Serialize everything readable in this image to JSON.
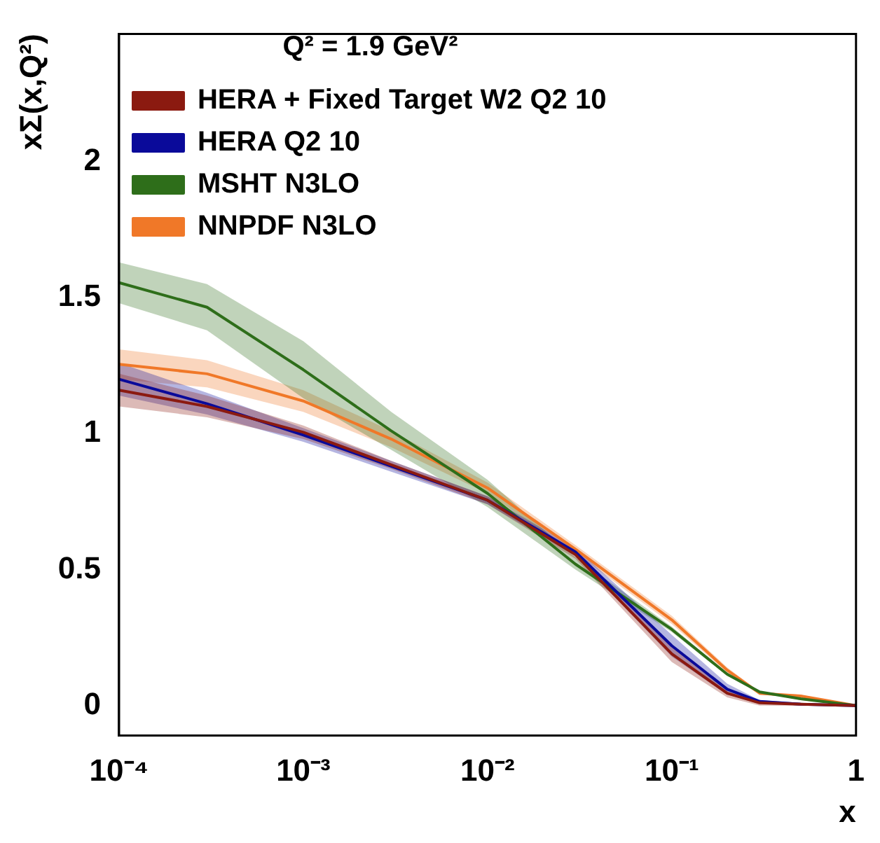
{
  "chart_data": {
    "type": "line",
    "ylabel": "xΣ(x,Q²)",
    "xlabel": "x",
    "legend_title": "Q² = 1.9 GeV²",
    "legend": "top left",
    "log": "x",
    "grid": false,
    "marker": "none",
    "line_style": "solid",
    "x": [
      0.0001,
      0.0003,
      0.001,
      0.003,
      0.01,
      0.03,
      0.1,
      0.2,
      0.3,
      0.5,
      1
    ],
    "xlim": [
      0.0001,
      1
    ],
    "xticks": [
      {
        "value": 0.0001,
        "label": "10⁻⁴"
      },
      {
        "value": 0.001,
        "label": "10⁻³"
      },
      {
        "value": 0.01,
        "label": "10⁻²"
      },
      {
        "value": 0.1,
        "label": "10⁻¹"
      },
      1
    ],
    "ylim": [
      -0.11,
      2.47
    ],
    "yticks": [
      0,
      0.5,
      1,
      1.5,
      2
    ],
    "series": [
      {
        "name": "HERA + Fixed Target W2 Q2 10",
        "color": "#8b1a10",
        "values": [
          1.16,
          1.1,
          1.005,
          0.885,
          0.755,
          0.555,
          0.19,
          0.045,
          0.01,
          0.005,
          0
        ],
        "lower": [
          1.1,
          1.06,
          0.98,
          0.87,
          0.74,
          0.54,
          0.16,
          0.03,
          0,
          0,
          0
        ],
        "upper": [
          1.22,
          1.14,
          1.03,
          0.9,
          0.77,
          0.57,
          0.22,
          0.06,
          0.02,
          0.01,
          0
        ]
      },
      {
        "name": "HERA Q2 10",
        "color": "#0a0a9a",
        "values": [
          1.2,
          1.11,
          0.995,
          0.88,
          0.755,
          0.565,
          0.22,
          0.06,
          0.015,
          0.005,
          0
        ],
        "lower": [
          1.14,
          1.07,
          0.97,
          0.86,
          0.74,
          0.55,
          0.18,
          0.04,
          0.01,
          0,
          0
        ],
        "upper": [
          1.26,
          1.15,
          1.02,
          0.9,
          0.77,
          0.58,
          0.26,
          0.08,
          0.02,
          0.01,
          0
        ]
      },
      {
        "name": "MSHT N3LO",
        "color": "#2e6e1a",
        "values": [
          1.555,
          1.465,
          1.235,
          1.01,
          0.78,
          0.52,
          0.28,
          0.115,
          0.05,
          0.025,
          0
        ],
        "lower": [
          1.48,
          1.38,
          1.13,
          0.94,
          0.73,
          0.5,
          0.27,
          0.11,
          0.05,
          0.02,
          0
        ],
        "upper": [
          1.63,
          1.55,
          1.34,
          1.08,
          0.83,
          0.545,
          0.29,
          0.12,
          0.05,
          0.03,
          0
        ]
      },
      {
        "name": "NNPDF N3LO",
        "color": "#f07828",
        "values": [
          1.255,
          1.22,
          1.12,
          0.98,
          0.8,
          0.575,
          0.315,
          0.13,
          0.045,
          0.035,
          0
        ],
        "lower": [
          1.2,
          1.17,
          1.08,
          0.95,
          0.78,
          0.56,
          0.3,
          0.12,
          0.04,
          0.03,
          0
        ],
        "upper": [
          1.31,
          1.27,
          1.16,
          1.01,
          0.82,
          0.59,
          0.33,
          0.14,
          0.05,
          0.04,
          0
        ]
      }
    ]
  }
}
